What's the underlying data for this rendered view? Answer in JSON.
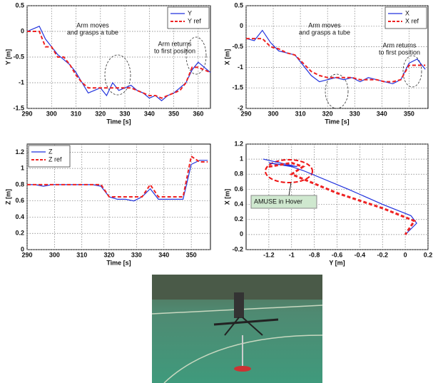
{
  "chart_data": [
    {
      "type": "line",
      "xlabel": "Time [s]",
      "ylabel": "Y [m]",
      "x": [
        290,
        292.5,
        295,
        297.5,
        300,
        302.5,
        305,
        307.5,
        310,
        312.5,
        315,
        317.5,
        320,
        322.5,
        325,
        327.5,
        330,
        332.5,
        335,
        337.5,
        340,
        342.5,
        345,
        347.5,
        350,
        352.5,
        355,
        357.5,
        360,
        362.5,
        365
      ],
      "series": [
        {
          "name": "Y",
          "color": "#2233dd",
          "dash": false,
          "values": [
            0,
            0.05,
            0.1,
            -0.15,
            -0.3,
            -0.45,
            -0.55,
            -0.65,
            -0.8,
            -1.0,
            -1.2,
            -1.15,
            -1.1,
            -1.25,
            -1.0,
            -1.15,
            -1.1,
            -1.05,
            -1.15,
            -1.2,
            -1.3,
            -1.25,
            -1.35,
            -1.25,
            -1.2,
            -1.1,
            -1.0,
            -0.75,
            -0.6,
            -0.7,
            -0.8
          ]
        },
        {
          "name": "Y ref",
          "color": "#ee2222",
          "dash": true,
          "values": [
            0,
            0,
            0,
            -0.3,
            -0.3,
            -0.5,
            -0.5,
            -0.65,
            -0.85,
            -1.0,
            -1.1,
            -1.1,
            -1.1,
            -1.1,
            -1.1,
            -1.1,
            -1.1,
            -1.1,
            -1.15,
            -1.2,
            -1.25,
            -1.25,
            -1.3,
            -1.25,
            -1.2,
            -1.15,
            -1.0,
            -0.7,
            -0.7,
            -0.75,
            -0.8
          ]
        }
      ],
      "xlim": [
        290,
        365
      ],
      "xticks": [
        290,
        300,
        310,
        320,
        330,
        340,
        350,
        360
      ],
      "ylim": [
        -1.5,
        0.5
      ],
      "yticks": [
        0.5,
        0,
        -0.5,
        -1,
        -1.5
      ],
      "grid": true,
      "legend": "upper right",
      "annotations": [
        [
          "Arm moves",
          "and grasps a tube"
        ],
        [
          "Arm returns",
          "to first position"
        ]
      ]
    },
    {
      "type": "line",
      "xlabel": "Time [s]",
      "ylabel": "X [m]",
      "x": [
        290,
        293,
        296,
        299,
        302,
        305,
        308,
        311,
        314,
        317,
        320,
        323,
        326,
        329,
        332,
        335,
        338,
        341,
        344,
        347,
        350,
        353,
        356
      ],
      "series": [
        {
          "name": "X",
          "color": "#2233dd",
          "dash": false,
          "values": [
            -0.3,
            -0.35,
            -0.1,
            -0.4,
            -0.6,
            -0.65,
            -0.7,
            -0.95,
            -1.2,
            -1.35,
            -1.3,
            -1.25,
            -1.3,
            -1.25,
            -1.35,
            -1.25,
            -1.3,
            -1.35,
            -1.4,
            -1.3,
            -0.9,
            -0.8,
            -1.05
          ]
        },
        {
          "name": "X ref",
          "color": "#ee2222",
          "dash": true,
          "values": [
            -0.3,
            -0.3,
            -0.3,
            -0.5,
            -0.55,
            -0.65,
            -0.7,
            -0.9,
            -1.1,
            -1.2,
            -1.25,
            -1.25,
            -1.25,
            -1.25,
            -1.3,
            -1.3,
            -1.3,
            -1.35,
            -1.35,
            -1.3,
            -0.95,
            -0.95,
            -0.95
          ]
        }
      ],
      "xlim": [
        290,
        357
      ],
      "xticks": [
        290,
        300,
        310,
        320,
        330,
        340,
        350
      ],
      "ylim": [
        -2,
        0.5
      ],
      "yticks": [
        0.5,
        0,
        -0.5,
        -1,
        -1.5,
        -2
      ],
      "grid": true,
      "legend": "upper right",
      "annotations": [
        [
          "Arm moves",
          "and grasps a tube"
        ],
        [
          "Arm returns",
          "to first position"
        ]
      ]
    },
    {
      "type": "line",
      "xlabel": "Time [s]",
      "ylabel": "Z [m]",
      "x": [
        290,
        293,
        296,
        299,
        302,
        305,
        308,
        311,
        314,
        317,
        320,
        323,
        326,
        329,
        332,
        335,
        338,
        341,
        344,
        347,
        350,
        353,
        356
      ],
      "series": [
        {
          "name": "Z",
          "color": "#2233dd",
          "dash": false,
          "values": [
            0.8,
            0.8,
            0.78,
            0.8,
            0.8,
            0.8,
            0.8,
            0.8,
            0.8,
            0.78,
            0.65,
            0.62,
            0.62,
            0.6,
            0.65,
            0.75,
            0.62,
            0.62,
            0.62,
            0.62,
            1.05,
            1.1,
            1.1
          ]
        },
        {
          "name": "Z ref",
          "color": "#ee2222",
          "dash": true,
          "values": [
            0.8,
            0.8,
            0.8,
            0.8,
            0.8,
            0.8,
            0.8,
            0.8,
            0.8,
            0.8,
            0.65,
            0.65,
            0.65,
            0.65,
            0.65,
            0.8,
            0.65,
            0.65,
            0.65,
            0.65,
            1.15,
            1.08,
            1.08
          ]
        }
      ],
      "xlim": [
        290,
        357
      ],
      "xticks": [
        290,
        300,
        310,
        320,
        330,
        340,
        350
      ],
      "ylim": [
        0,
        1.3
      ],
      "yticks": [
        0,
        0.2,
        0.4,
        0.6,
        0.8,
        1,
        1.2
      ],
      "grid": true,
      "legend": "upper left"
    },
    {
      "type": "line",
      "xlabel": "Y [m]",
      "ylabel": "X [m]",
      "series": [
        {
          "color": "#2233dd",
          "dash": false,
          "x": [
            -1.25,
            -1.1,
            -0.95,
            -1.2,
            -1.0,
            -0.9,
            -0.5,
            -0.2,
            0.05,
            0.1,
            0.0
          ],
          "values": [
            1.0,
            0.95,
            0.9,
            0.95,
            0.9,
            0.85,
            0.6,
            0.4,
            0.25,
            0.15,
            0.0
          ]
        },
        {
          "color": "#ee2222",
          "dash": true,
          "x": [
            -1.2,
            -1.0,
            -0.9,
            -1.0,
            -0.6,
            -0.2,
            0.08,
            0.0
          ],
          "values": [
            0.9,
            0.95,
            0.9,
            0.8,
            0.55,
            0.35,
            0.18,
            0.0
          ]
        }
      ],
      "xlim": [
        -1.4,
        0.2
      ],
      "xticks": [
        -1.2,
        -1,
        -0.8,
        -0.6,
        -0.4,
        -0.2,
        0,
        0.2
      ],
      "ylim": [
        -0.2,
        1.2
      ],
      "yticks": [
        -0.2,
        0,
        0.2,
        0.4,
        0.6,
        0.8,
        1,
        1.2
      ],
      "grid": true,
      "annotations": [
        "AMUSE in Hover"
      ]
    }
  ]
}
